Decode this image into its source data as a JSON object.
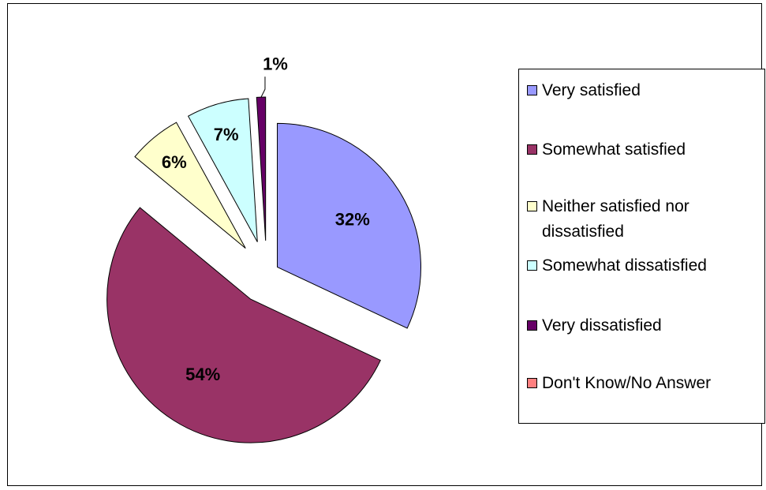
{
  "chart_data": {
    "type": "pie",
    "title": "",
    "categories": [
      "Very satisfied",
      "Somewhat satisfied",
      "Neither satisfied nor dissatisfied",
      "Somewhat dissatisfied",
      "Very dissatisfied",
      "Don't Know/No Answer"
    ],
    "values": [
      32,
      54,
      6,
      7,
      1,
      0
    ],
    "data_labels": [
      "32%",
      "54%",
      "6%",
      "7%",
      "1%",
      ""
    ],
    "colors": [
      "#9999ff",
      "#993366",
      "#ffffcc",
      "#ccffff",
      "#660066",
      "#ff8080"
    ],
    "exploded": true,
    "legend_position": "right"
  },
  "legend": {
    "items": [
      {
        "label": "Very satisfied"
      },
      {
        "label": "Somewhat satisfied"
      },
      {
        "label": "Neither satisfied nor dissatisfied"
      },
      {
        "label": "Somewhat dissatisfied"
      },
      {
        "label": "Very dissatisfied"
      },
      {
        "label": "Don't Know/No Answer"
      }
    ]
  }
}
